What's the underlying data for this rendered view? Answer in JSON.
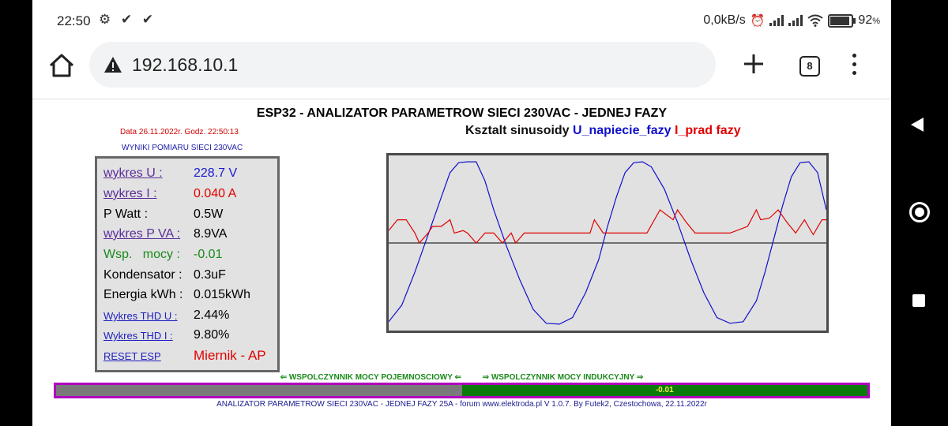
{
  "status": {
    "time": "22:50",
    "left_icons": "⚙ ✔ ✔",
    "net_speed": "0,0kB/s",
    "battery_pct": "92",
    "battery_unit": "%"
  },
  "browser": {
    "url": "192.168.10.1",
    "tab_count": "8"
  },
  "page": {
    "title": "ESP32 - ANALIZATOR PARAMETROW SIECI 230VAC - JEDNEJ FAZY",
    "date_line": "Data 26.11.2022r. Godz. 22:50:13",
    "results_label": "WYNIKI POMIARU SIECI 230VAC",
    "chart_heading_prefix": "Ksztalt sinusoidy ",
    "chart_heading_u": "U_napiecie_fazy",
    "chart_heading_i": "I_prad fazy"
  },
  "measurements": {
    "u_label": "wykres U :",
    "u_value": "228.7 V",
    "i_label": "wykres I :",
    "i_value": "0.040 A",
    "p_label": "P Watt :",
    "p_value": "0.5W",
    "pva_label": "wykres P VA :",
    "pva_value": "8.9VA",
    "pf_label": "Wsp.   mocy :",
    "pf_value": "-0.01",
    "cap_label": "Kondensator :",
    "cap_value": "0.3uF",
    "energy_label": "Energia kWh :",
    "energy_value": "0.015kWh",
    "thdu_label": "Wykres THD U :",
    "thdu_value": "2.44%",
    "thdi_label": "Wykres THD I :",
    "thdi_value": "9.80%",
    "reset_label": "RESET ESP",
    "mode_value": "Miernik - AP"
  },
  "power_factor_bar": {
    "left_label": "⇐ WSPOLCZYNNIK MOCY POJEMNOSCIOWY ⇐",
    "right_label": "⇒ WSPOLCZYNNIK MOCY INDUKCYJNY ⇒",
    "value": "-0.01",
    "fill_start_fraction": 0.5
  },
  "footer": "ANALIZATOR PARAMETROW SIECI 230VAC - JEDNEJ FAZY 25A - forum www.elektroda.pl V 1.0.7. By Futek2, Czestochowa, 22.11.2022r",
  "colors": {
    "voltage": "#1010cc",
    "current": "#e00000",
    "zero_line": "#000000"
  },
  "chart_data": {
    "type": "line",
    "title": "",
    "xlabel": "",
    "ylabel": "",
    "ylim": [
      -1,
      1
    ],
    "grid": false,
    "series": [
      {
        "name": "U_napiecie_fazy",
        "x": [
          0,
          0.03,
          0.06,
          0.09,
          0.12,
          0.14,
          0.16,
          0.18,
          0.2,
          0.22,
          0.24,
          0.27,
          0.3,
          0.33,
          0.36,
          0.39,
          0.42,
          0.45,
          0.48,
          0.5,
          0.52,
          0.54,
          0.56,
          0.58,
          0.6,
          0.63,
          0.66,
          0.69,
          0.72,
          0.75,
          0.78,
          0.81,
          0.84,
          0.86,
          0.88,
          0.9,
          0.92,
          0.94,
          0.96,
          0.98,
          1
        ],
        "values": [
          -0.95,
          -0.75,
          -0.35,
          0.1,
          0.55,
          0.85,
          0.97,
          0.98,
          0.98,
          0.75,
          0.4,
          -0.05,
          -0.45,
          -0.8,
          -0.97,
          -0.98,
          -0.9,
          -0.6,
          -0.2,
          0.2,
          0.55,
          0.85,
          0.97,
          0.98,
          0.92,
          0.65,
          0.25,
          -0.2,
          -0.6,
          -0.9,
          -0.97,
          -0.95,
          -0.7,
          -0.35,
          0.05,
          0.45,
          0.8,
          0.97,
          0.98,
          0.85,
          0.4
        ]
      },
      {
        "name": "I_prad fazy",
        "x": [
          0,
          0.02,
          0.04,
          0.06,
          0.07,
          0.09,
          0.1,
          0.12,
          0.14,
          0.15,
          0.17,
          0.18,
          0.2,
          0.22,
          0.24,
          0.26,
          0.28,
          0.29,
          0.31,
          0.33,
          0.35,
          0.37,
          0.4,
          0.43,
          0.46,
          0.47,
          0.49,
          0.51,
          0.53,
          0.55,
          0.57,
          0.59,
          0.62,
          0.65,
          0.66,
          0.68,
          0.7,
          0.74,
          0.78,
          0.82,
          0.84,
          0.85,
          0.87,
          0.89,
          0.91,
          0.93,
          0.95,
          0.97,
          0.99,
          1
        ],
        "values": [
          0.15,
          0.28,
          0.28,
          0.12,
          0.0,
          0.12,
          0.2,
          0.2,
          0.28,
          0.12,
          0.15,
          0.12,
          0.0,
          0.12,
          0.12,
          0.0,
          0.12,
          0.0,
          0.12,
          0.12,
          0.12,
          0.12,
          0.12,
          0.12,
          0.12,
          0.28,
          0.12,
          0.12,
          0.12,
          0.12,
          0.12,
          0.12,
          0.4,
          0.28,
          0.4,
          0.25,
          0.12,
          0.12,
          0.12,
          0.2,
          0.4,
          0.28,
          0.3,
          0.4,
          0.25,
          0.12,
          0.28,
          0.1,
          0.28,
          0.28
        ]
      }
    ]
  }
}
